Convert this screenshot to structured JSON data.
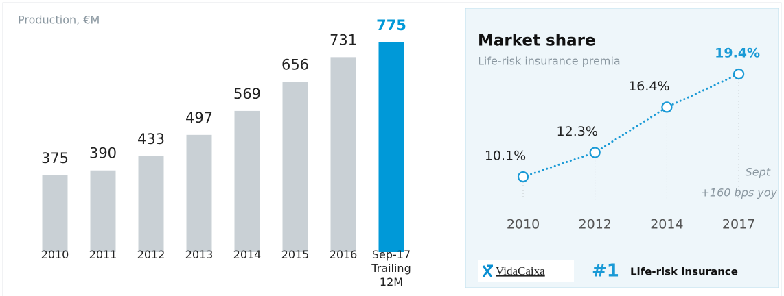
{
  "chart_data": [
    {
      "type": "bar",
      "title": "Production, €M",
      "categories": [
        "2010",
        "2011",
        "2012",
        "2013",
        "2014",
        "2015",
        "2016",
        "Sep-17 Trailing 12M"
      ],
      "values": [
        375,
        390,
        433,
        497,
        569,
        656,
        731,
        775
      ],
      "colors": [
        "#c9d0d5",
        "#c9d0d5",
        "#c9d0d5",
        "#c9d0d5",
        "#c9d0d5",
        "#c9d0d5",
        "#c9d0d5",
        "#0099d8"
      ]
    },
    {
      "type": "line",
      "title": "Market share",
      "subtitle": "Life-risk insurance premia",
      "categories": [
        "2010",
        "2012",
        "2014",
        "2017"
      ],
      "values": [
        10.1,
        12.3,
        16.4,
        19.4
      ],
      "value_labels": [
        "10.1%",
        "12.3%",
        "16.4%",
        "19.4%"
      ],
      "color": "#1a9ad6",
      "annotation": [
        "Sept",
        "+160 bps yoy"
      ],
      "logo": "VidaCaixa",
      "badge": "#1",
      "badge_text": "Life-risk insurance"
    }
  ]
}
